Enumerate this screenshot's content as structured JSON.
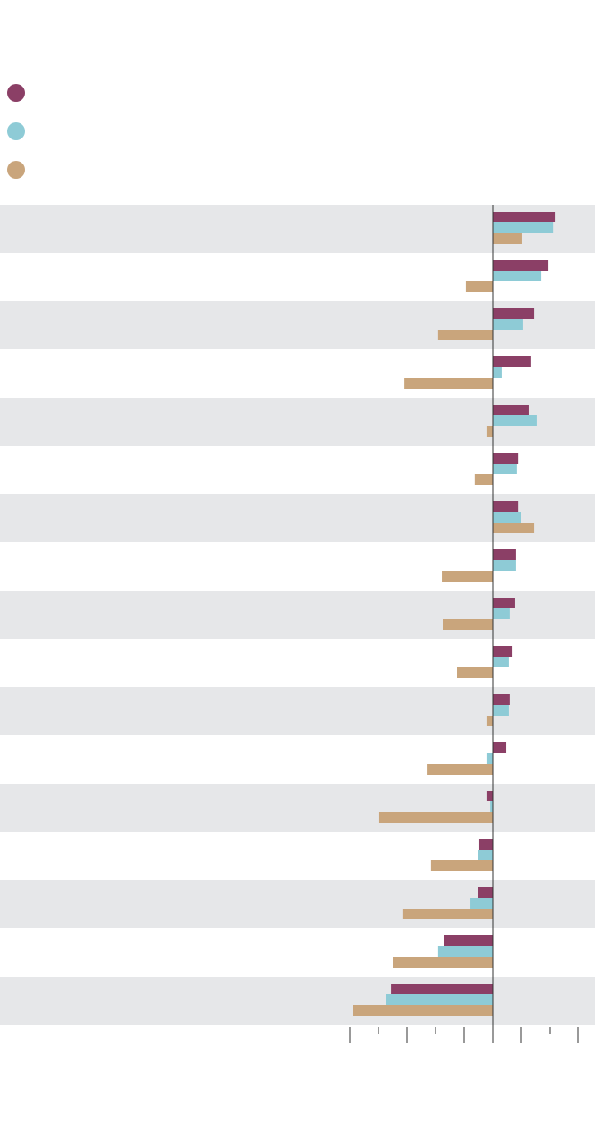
{
  "chart_data": {
    "type": "hbar",
    "categories": [
      null,
      null,
      null,
      null,
      null,
      null,
      null,
      null,
      null,
      null,
      null,
      null,
      null,
      null,
      null,
      null,
      null
    ],
    "series": [
      {
        "color": "#8b3f66",
        "values": [
          2.19,
          1.94,
          1.44,
          1.34,
          1.28,
          0.88,
          0.88,
          0.81,
          0.78,
          0.69,
          0.59,
          0.47,
          -0.19,
          -0.47,
          -0.5,
          -1.69,
          -3.56
        ]
      },
      {
        "color": "#8ecbd6",
        "values": [
          2.13,
          1.69,
          1.06,
          0.31,
          1.56,
          0.84,
          1.0,
          0.81,
          0.59,
          0.56,
          0.56,
          -0.19,
          -0.09,
          -0.53,
          -0.78,
          -1.91,
          -3.75
        ]
      },
      {
        "color": "#c9a57c",
        "values": [
          1.03,
          -0.94,
          -1.91,
          -3.09,
          -0.19,
          -0.63,
          1.44,
          -1.78,
          -1.75,
          -1.25,
          -0.19,
          -2.31,
          -3.97,
          -2.16,
          -3.16,
          -3.5,
          -4.88
        ]
      }
    ],
    "xlim": [
      -5,
      3
    ],
    "xticks": [
      -5,
      -4,
      -3,
      -2,
      -1,
      0,
      1,
      2,
      3
    ],
    "legend": "top-left"
  }
}
